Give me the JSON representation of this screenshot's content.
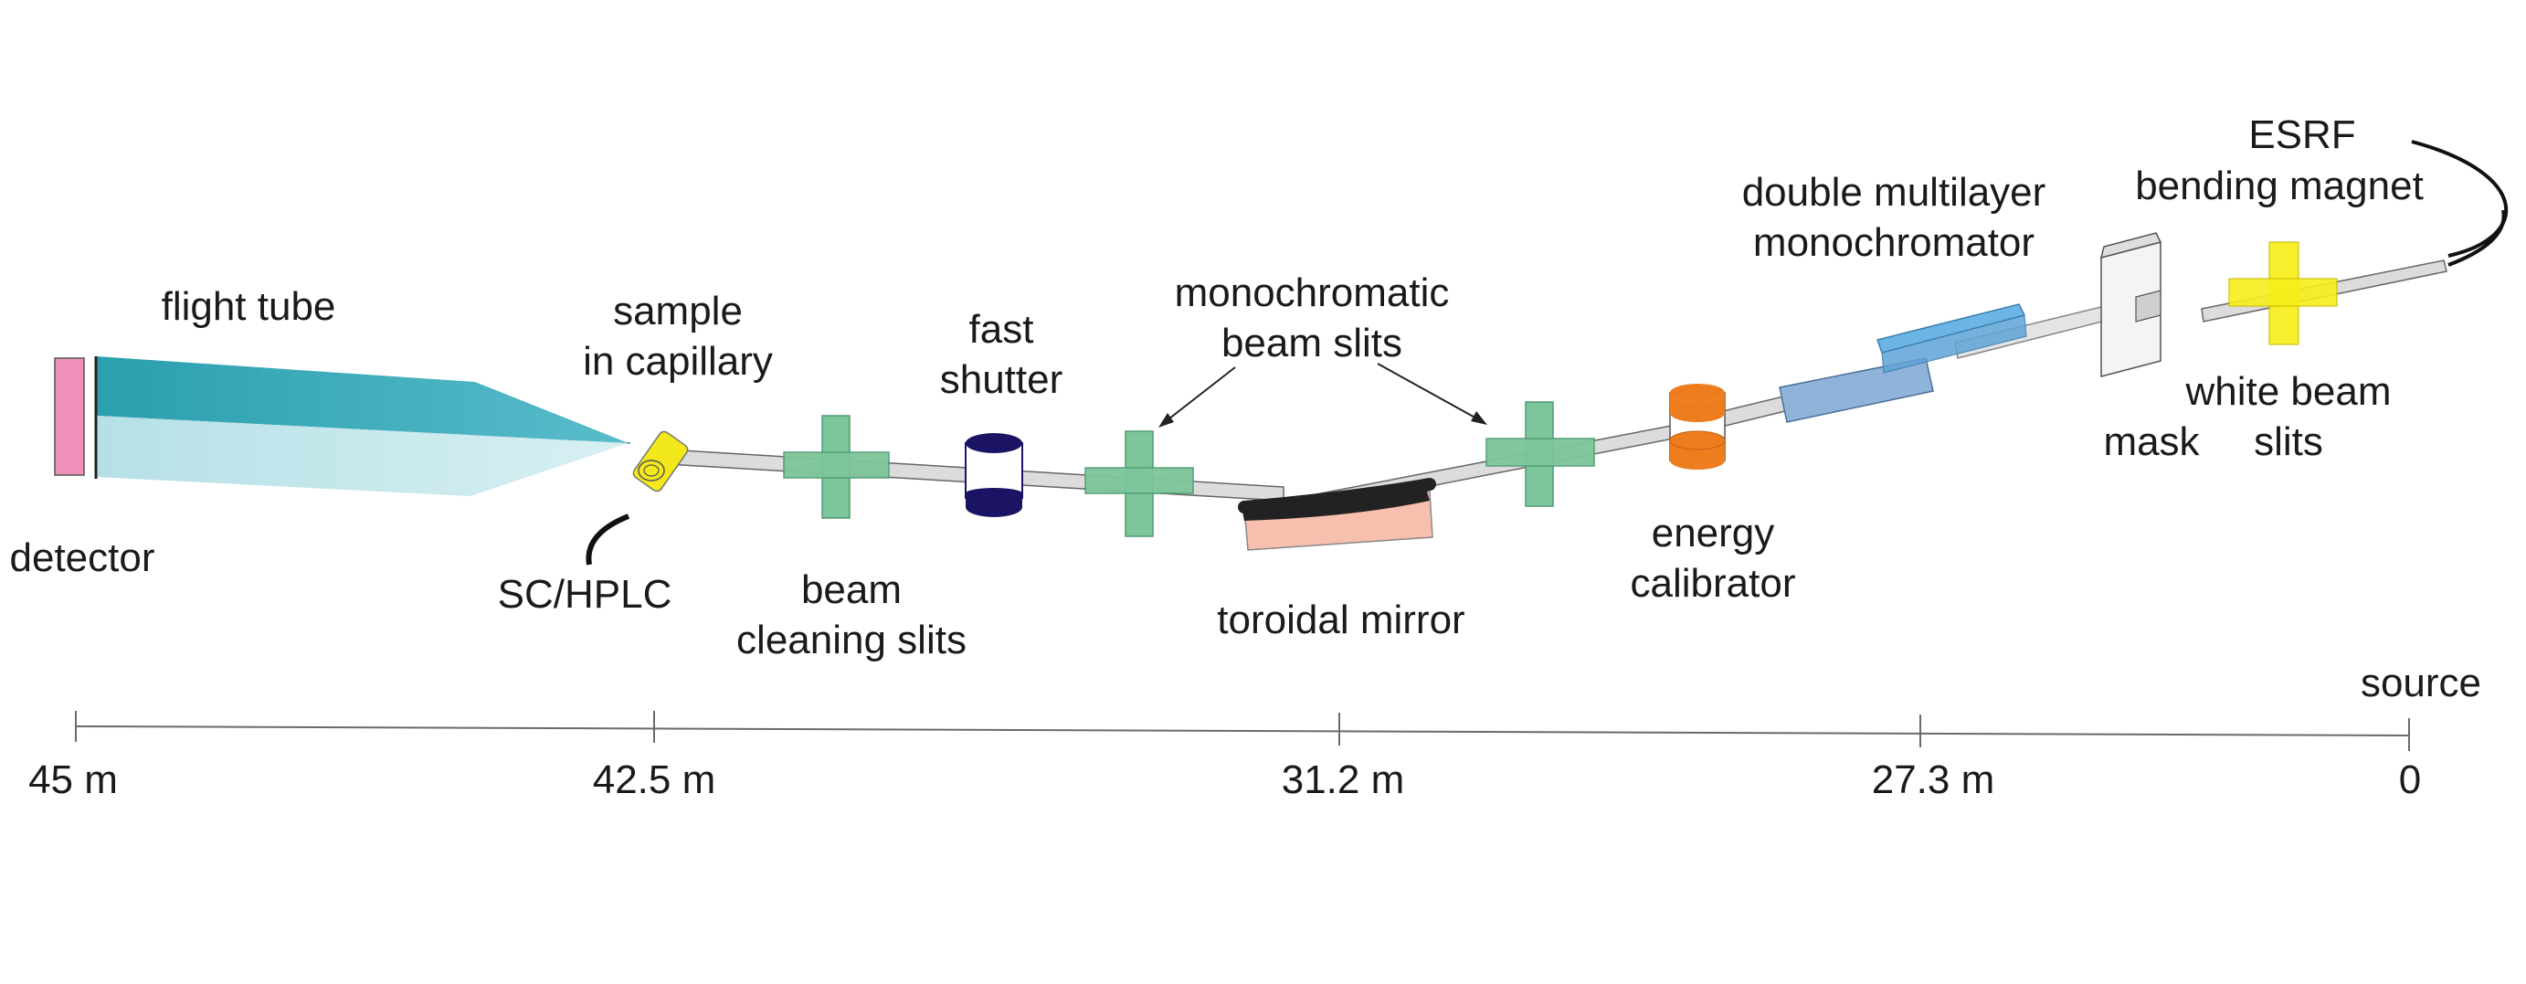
{
  "labels": {
    "esrf": "ESRF",
    "bending_magnet": "bending magnet",
    "double_multilayer": "double multilayer",
    "monochromator": "monochromator",
    "flight_tube": "flight tube",
    "sample": "sample",
    "in_capillary": "in capillary",
    "fast": "fast",
    "shutter": "shutter",
    "monochromatic": "monochromatic",
    "beam_slits": "beam slits",
    "white_beam": "white beam",
    "slits": "slits",
    "mask": "mask",
    "detector": "detector",
    "sc_hplc": "SC/HPLC",
    "beam": "beam",
    "cleaning_slits": "cleaning slits",
    "toroidal_mirror": "toroidal mirror",
    "energy": "energy",
    "calibrator": "calibrator",
    "source": "source"
  },
  "scale": {
    "ticks": [
      "45 m",
      "42.5 m",
      "31.2 m",
      "27.3 m",
      "0"
    ]
  },
  "colors": {
    "flight_tube_dark": "#3aa9b5",
    "flight_tube_light": "#bfe4ea",
    "detector": "#ef90b8",
    "sample": "#f2e81a",
    "slits_green": "#7dc59a",
    "shutter_navy": "#1b1464",
    "mirror_pink": "#f6bfae",
    "mirror_black": "#222222",
    "calibrator_orange": "#ee7d1e",
    "monochromator_blue": "#8fb3d9",
    "monochromator_light": "#6cb6e6",
    "white_slits_yellow": "#f7ee1c",
    "beam_grey": "#dcdcdc"
  }
}
